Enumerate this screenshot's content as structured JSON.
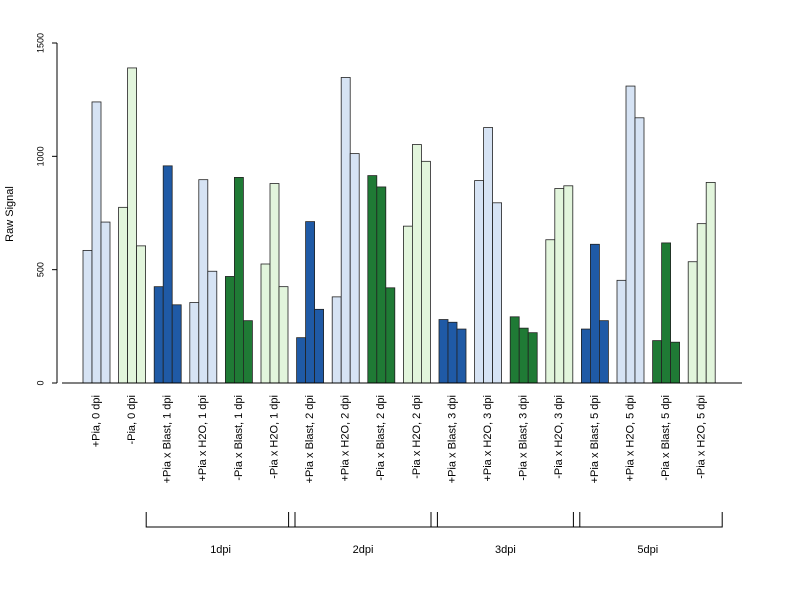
{
  "chart_data": {
    "type": "bar",
    "ylabel": "Raw Signal",
    "ylim": [
      0,
      1500
    ],
    "yticks": [
      0,
      500,
      1000,
      1500
    ],
    "grid": false,
    "colors": {
      "blue_dark": "#1f5aa6",
      "blue_light": "#d6e3f4",
      "green_dark": "#1f7a35",
      "green_light": "#e2f5dc"
    },
    "categories": [
      {
        "label": "+Pia, 0 dpi",
        "color": "blue_light",
        "values": [
          585,
          1240,
          710
        ]
      },
      {
        "label": "-Pia, 0 dpi",
        "color": "green_light",
        "values": [
          775,
          1390,
          605
        ]
      },
      {
        "label": "+Pia x Blast, 1 dpi",
        "color": "blue_dark",
        "values": [
          425,
          958,
          345
        ]
      },
      {
        "label": "+Pia x H2O, 1 dpi",
        "color": "blue_light",
        "values": [
          355,
          897,
          493
        ]
      },
      {
        "label": "-Pia x Blast, 1 dpi",
        "color": "green_dark",
        "values": [
          470,
          907,
          275
        ]
      },
      {
        "label": "-Pia x H2O, 1 dpi",
        "color": "green_light",
        "values": [
          525,
          880,
          425
        ]
      },
      {
        "label": "+Pia x Blast, 2 dpi",
        "color": "blue_dark",
        "values": [
          200,
          712,
          325
        ]
      },
      {
        "label": "+Pia x H2O, 2 dpi",
        "color": "blue_light",
        "values": [
          380,
          1348,
          1012
        ]
      },
      {
        "label": "-Pia x Blast, 2 dpi",
        "color": "green_dark",
        "values": [
          915,
          865,
          420
        ]
      },
      {
        "label": "-Pia x H2O, 2 dpi",
        "color": "green_light",
        "values": [
          692,
          1052,
          978
        ]
      },
      {
        "label": "+Pia x Blast, 3 dpi",
        "color": "blue_dark",
        "values": [
          280,
          268,
          238
        ]
      },
      {
        "label": "+Pia x H2O, 3 dpi",
        "color": "blue_light",
        "values": [
          893,
          1127,
          795
        ]
      },
      {
        "label": "-Pia x Blast, 3 dpi",
        "color": "green_dark",
        "values": [
          292,
          242,
          222
        ]
      },
      {
        "label": "-Pia x H2O, 3 dpi",
        "color": "green_light",
        "values": [
          632,
          858,
          870
        ]
      },
      {
        "label": "+Pia x Blast, 5 dpi",
        "color": "blue_dark",
        "values": [
          238,
          612,
          275
        ]
      },
      {
        "label": "+Pia x H2O, 5 dpi",
        "color": "blue_light",
        "values": [
          453,
          1310,
          1170
        ]
      },
      {
        "label": "-Pia x Blast, 5 dpi",
        "color": "green_dark",
        "values": [
          187,
          618,
          180
        ]
      },
      {
        "label": "-Pia x H2O, 5 dpi",
        "color": "green_light",
        "values": [
          535,
          703,
          885
        ]
      }
    ],
    "groups": [
      {
        "label": "1dpi",
        "from": 2,
        "to": 5
      },
      {
        "label": "2dpi",
        "from": 6,
        "to": 9
      },
      {
        "label": "3dpi",
        "from": 10,
        "to": 13
      },
      {
        "label": "5dpi",
        "from": 14,
        "to": 17
      }
    ]
  }
}
